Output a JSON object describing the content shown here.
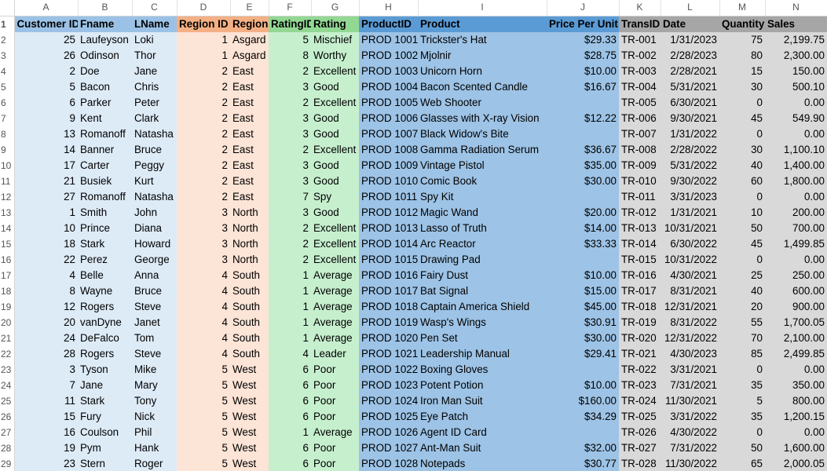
{
  "columns": [
    "A",
    "B",
    "C",
    "D",
    "E",
    "F",
    "G",
    "H",
    "I",
    "J",
    "K",
    "L",
    "M",
    "N"
  ],
  "headers": [
    "Customer ID",
    "Fname",
    "LName",
    "Region ID",
    "Region",
    "RatingID",
    "Rating",
    "ProductID",
    "Product",
    "Price Per Unit",
    "TransID",
    "Date",
    "Quantity",
    "Sales"
  ],
  "rows": [
    [
      "25",
      "Laufeyson",
      "Loki",
      "1",
      "Asgard",
      "5",
      "Mischief",
      "PROD 1001",
      "Trickster's Hat",
      "$29.33",
      "TR-001",
      "1/31/2023",
      "75",
      "2,199.75"
    ],
    [
      "26",
      "Odinson",
      "Thor",
      "1",
      "Asgard",
      "8",
      "Worthy",
      "PROD 1002",
      "Mjolnir",
      "$28.75",
      "TR-002",
      "2/28/2023",
      "80",
      "2,300.00"
    ],
    [
      "2",
      "Doe",
      "Jane",
      "2",
      "East",
      "2",
      "Excellent",
      "PROD 1003",
      "Unicorn Horn",
      "$10.00",
      "TR-003",
      "2/28/2021",
      "15",
      "150.00"
    ],
    [
      "5",
      "Bacon",
      "Chris",
      "2",
      "East",
      "3",
      "Good",
      "PROD 1004",
      "Bacon Scented Candle",
      "$16.67",
      "TR-004",
      "5/31/2021",
      "30",
      "500.10"
    ],
    [
      "6",
      "Parker",
      "Peter",
      "2",
      "East",
      "2",
      "Excellent",
      "PROD 1005",
      "Web Shooter",
      "",
      "TR-005",
      "6/30/2021",
      "0",
      "0.00"
    ],
    [
      "9",
      "Kent",
      "Clark",
      "2",
      "East",
      "3",
      "Good",
      "PROD 1006",
      "Glasses with X-ray Vision",
      "$12.22",
      "TR-006",
      "9/30/2021",
      "45",
      "549.90"
    ],
    [
      "13",
      "Romanoff",
      "Natasha",
      "2",
      "East",
      "3",
      "Good",
      "PROD 1007",
      "Black Widow's Bite",
      "",
      "TR-007",
      "1/31/2022",
      "0",
      "0.00"
    ],
    [
      "14",
      "Banner",
      "Bruce",
      "2",
      "East",
      "2",
      "Excellent",
      "PROD 1008",
      "Gamma Radiation Serum",
      "$36.67",
      "TR-008",
      "2/28/2022",
      "30",
      "1,100.10"
    ],
    [
      "17",
      "Carter",
      "Peggy",
      "2",
      "East",
      "3",
      "Good",
      "PROD 1009",
      "Vintage Pistol",
      "$35.00",
      "TR-009",
      "5/31/2022",
      "40",
      "1,400.00"
    ],
    [
      "21",
      "Busiek",
      "Kurt",
      "2",
      "East",
      "3",
      "Good",
      "PROD 1010",
      "Comic Book",
      "$30.00",
      "TR-010",
      "9/30/2022",
      "60",
      "1,800.00"
    ],
    [
      "27",
      "Romanoff",
      "Natasha",
      "2",
      "East",
      "7",
      "Spy",
      "PROD 1011",
      "Spy Kit",
      "",
      "TR-011",
      "3/31/2023",
      "0",
      "0.00"
    ],
    [
      "1",
      "Smith",
      "John",
      "3",
      "North",
      "3",
      "Good",
      "PROD 1012",
      "Magic Wand",
      "$20.00",
      "TR-012",
      "1/31/2021",
      "10",
      "200.00"
    ],
    [
      "10",
      "Prince",
      "Diana",
      "3",
      "North",
      "2",
      "Excellent",
      "PROD 1013",
      "Lasso of Truth",
      "$14.00",
      "TR-013",
      "10/31/2021",
      "50",
      "700.00"
    ],
    [
      "18",
      "Stark",
      "Howard",
      "3",
      "North",
      "2",
      "Excellent",
      "PROD 1014",
      "Arc Reactor",
      "$33.33",
      "TR-014",
      "6/30/2022",
      "45",
      "1,499.85"
    ],
    [
      "22",
      "Perez",
      "George",
      "3",
      "North",
      "2",
      "Excellent",
      "PROD 1015",
      "Drawing Pad",
      "",
      "TR-015",
      "10/31/2022",
      "0",
      "0.00"
    ],
    [
      "4",
      "Belle",
      "Anna",
      "4",
      "South",
      "1",
      "Average",
      "PROD 1016",
      "Fairy Dust",
      "$10.00",
      "TR-016",
      "4/30/2021",
      "25",
      "250.00"
    ],
    [
      "8",
      "Wayne",
      "Bruce",
      "4",
      "South",
      "1",
      "Average",
      "PROD 1017",
      "Bat Signal",
      "$15.00",
      "TR-017",
      "8/31/2021",
      "40",
      "600.00"
    ],
    [
      "12",
      "Rogers",
      "Steve",
      "4",
      "South",
      "1",
      "Average",
      "PROD 1018",
      "Captain America Shield",
      "$45.00",
      "TR-018",
      "12/31/2021",
      "20",
      "900.00"
    ],
    [
      "20",
      "vanDyne",
      "Janet",
      "4",
      "South",
      "1",
      "Average",
      "PROD 1019",
      "Wasp's Wings",
      "$30.91",
      "TR-019",
      "8/31/2022",
      "55",
      "1,700.05"
    ],
    [
      "24",
      "DeFalco",
      "Tom",
      "4",
      "South",
      "1",
      "Average",
      "PROD 1020",
      "Pen Set",
      "$30.00",
      "TR-020",
      "12/31/2022",
      "70",
      "2,100.00"
    ],
    [
      "28",
      "Rogers",
      "Steve",
      "4",
      "South",
      "4",
      "Leader",
      "PROD 1021",
      "Leadership Manual",
      "$29.41",
      "TR-021",
      "4/30/2023",
      "85",
      "2,499.85"
    ],
    [
      "3",
      "Tyson",
      "Mike",
      "5",
      "West",
      "6",
      "Poor",
      "PROD 1022",
      "Boxing Gloves",
      "",
      "TR-022",
      "3/31/2021",
      "0",
      "0.00"
    ],
    [
      "7",
      "Jane",
      "Mary",
      "5",
      "West",
      "6",
      "Poor",
      "PROD 1023",
      "Potent Potion",
      "$10.00",
      "TR-023",
      "7/31/2021",
      "35",
      "350.00"
    ],
    [
      "11",
      "Stark",
      "Tony",
      "5",
      "West",
      "6",
      "Poor",
      "PROD 1024",
      "Iron Man Suit",
      "$160.00",
      "TR-024",
      "11/30/2021",
      "5",
      "800.00"
    ],
    [
      "15",
      "Fury",
      "Nick",
      "5",
      "West",
      "6",
      "Poor",
      "PROD 1025",
      "Eye Patch",
      "$34.29",
      "TR-025",
      "3/31/2022",
      "35",
      "1,200.15"
    ],
    [
      "16",
      "Coulson",
      "Phil",
      "5",
      "West",
      "1",
      "Average",
      "PROD 1026",
      "Agent ID Card",
      "",
      "TR-026",
      "4/30/2022",
      "0",
      "0.00"
    ],
    [
      "19",
      "Pym",
      "Hank",
      "5",
      "West",
      "6",
      "Poor",
      "PROD 1027",
      "Ant-Man Suit",
      "$32.00",
      "TR-027",
      "7/31/2022",
      "50",
      "1,600.00"
    ],
    [
      "23",
      "Stern",
      "Roger",
      "5",
      "West",
      "6",
      "Poor",
      "PROD 1028",
      "Notepads",
      "$30.77",
      "TR-028",
      "11/30/2022",
      "65",
      "2,000.05"
    ]
  ],
  "colors": {
    "customer": "#ddebf7",
    "customer_header": "#9bc2e6",
    "region": "#fce4d6",
    "region_header": "#f4b084",
    "rating": "#c6efce",
    "rating_header": "#92d893",
    "product": "#9dc3e6",
    "product_header": "#5b9bd5",
    "transaction": "#d9d9d9",
    "transaction_header": "#a6a6a6"
  }
}
